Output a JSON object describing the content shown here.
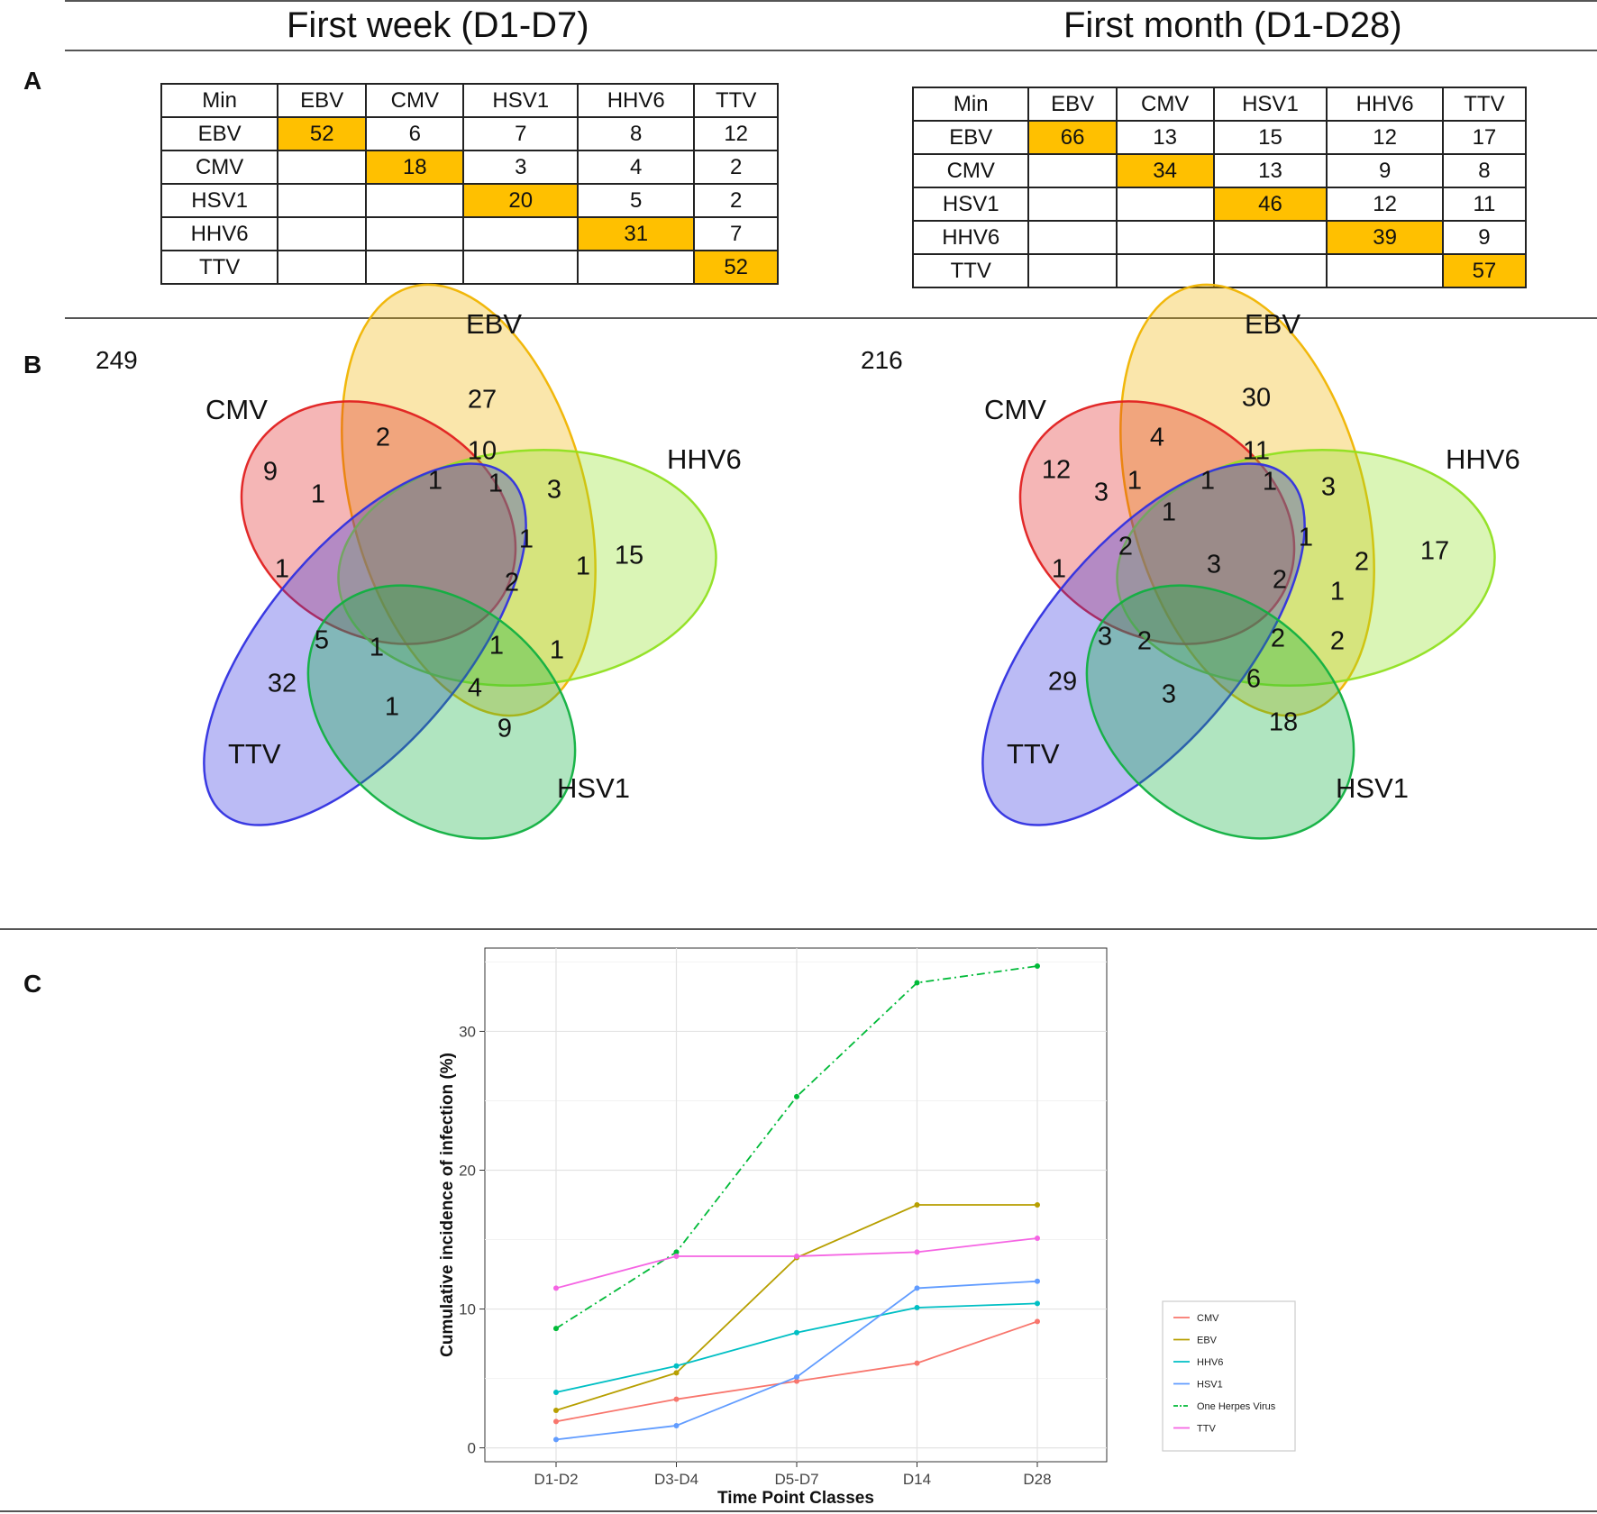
{
  "headers": {
    "left": "First week (D1-D7)",
    "right": "First month (D1-D28)"
  },
  "panels": {
    "a": "A",
    "b": "B",
    "c": "C"
  },
  "table_week": {
    "header": [
      "Min",
      "EBV",
      "CMV",
      "HSV1",
      "HHV6",
      "TTV"
    ],
    "rows": [
      [
        "EBV",
        "52",
        "6",
        "7",
        "8",
        "12"
      ],
      [
        "CMV",
        "",
        "18",
        "3",
        "4",
        "2"
      ],
      [
        "HSV1",
        "",
        "",
        "20",
        "5",
        "2"
      ],
      [
        "HHV6",
        "",
        "",
        "",
        "31",
        "7"
      ],
      [
        "TTV",
        "",
        "",
        "",
        "",
        "52"
      ]
    ]
  },
  "table_month": {
    "header": [
      "Min",
      "EBV",
      "CMV",
      "HSV1",
      "HHV6",
      "TTV"
    ],
    "rows": [
      [
        "EBV",
        "66",
        "13",
        "15",
        "12",
        "17"
      ],
      [
        "CMV",
        "",
        "34",
        "13",
        "9",
        "8"
      ],
      [
        "HSV1",
        "",
        "",
        "46",
        "12",
        "11"
      ],
      [
        "HHV6",
        "",
        "",
        "",
        "39",
        "9"
      ],
      [
        "TTV",
        "",
        "",
        "",
        "",
        "57"
      ]
    ]
  },
  "venn_week": {
    "total": "249",
    "sets": [
      "EBV",
      "CMV",
      "HHV6",
      "TTV",
      "HSV1"
    ],
    "counts": [
      "27",
      "2",
      "10",
      "9",
      "1",
      "1",
      "1",
      "3",
      "15",
      "1",
      "1",
      "2",
      "1",
      "5",
      "1",
      "1",
      "1",
      "32",
      "4",
      "1",
      "9"
    ]
  },
  "venn_month": {
    "total": "216",
    "sets": [
      "EBV",
      "CMV",
      "HHV6",
      "TTV",
      "HSV1"
    ],
    "counts": [
      "30",
      "4",
      "11",
      "12",
      "3",
      "1",
      "1",
      "1",
      "3",
      "1",
      "1",
      "2",
      "2",
      "3",
      "2",
      "1",
      "17",
      "1",
      "3",
      "2",
      "2",
      "2",
      "29",
      "6",
      "3",
      "18"
    ]
  },
  "set_colors": {
    "EBV": "#f0b400",
    "CMV": "#e02020",
    "HHV6": "#90e020",
    "TTV": "#3030e0",
    "HSV1": "#10b040"
  },
  "chart_data": {
    "type": "line",
    "categories": [
      "D1-D2",
      "D3-D4",
      "D5-D7",
      "D14",
      "D28"
    ],
    "xlabel": "Time Point Classes",
    "ylabel": "Cumulative incidence of infection (%)",
    "ylim": [
      -1,
      36
    ],
    "yticks": [
      "0",
      "10",
      "20",
      "30"
    ],
    "series": [
      {
        "name": "CMV",
        "color": "#f8766d",
        "dashed": false,
        "values": [
          1.9,
          3.5,
          4.8,
          6.1,
          9.1
        ]
      },
      {
        "name": "EBV",
        "color": "#b79f00",
        "dashed": false,
        "values": [
          2.7,
          5.4,
          13.7,
          17.5,
          17.5
        ]
      },
      {
        "name": "HHV6",
        "color": "#00bfc4",
        "dashed": false,
        "values": [
          4.0,
          5.9,
          8.3,
          10.1,
          10.4
        ]
      },
      {
        "name": "HSV1",
        "color": "#619cff",
        "dashed": false,
        "values": [
          0.6,
          1.6,
          5.1,
          11.5,
          12.0
        ]
      },
      {
        "name": "One Herpes Virus",
        "color": "#00ba38",
        "dashed": true,
        "values": [
          8.6,
          14.1,
          25.3,
          33.5,
          34.7
        ]
      },
      {
        "name": "TTV",
        "color": "#f564e3",
        "dashed": false,
        "values": [
          11.5,
          13.8,
          13.8,
          14.1,
          15.1
        ]
      }
    ]
  }
}
